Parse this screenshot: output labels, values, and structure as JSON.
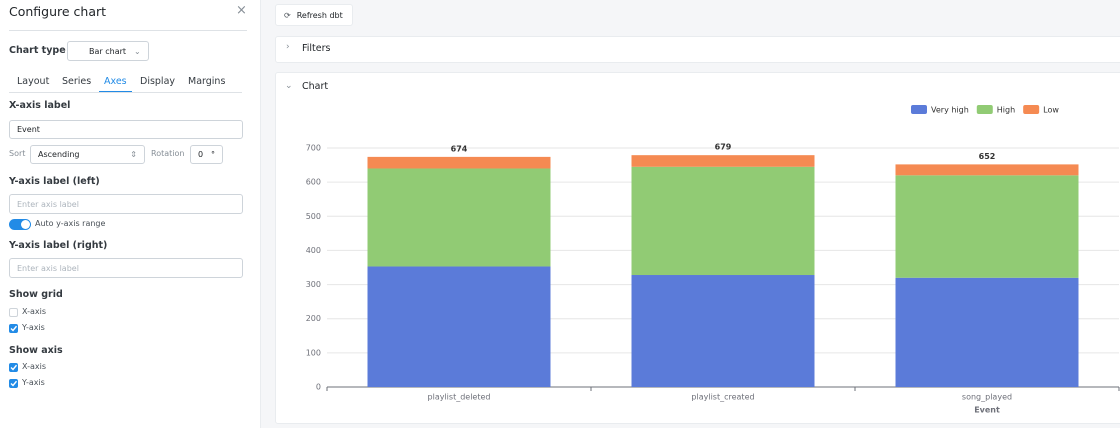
{
  "panel": {
    "title": "Configure chart",
    "chart_type_label": "Chart type",
    "chart_type": "Bar chart",
    "tabs": [
      "Layout",
      "Series",
      "Axes",
      "Display",
      "Margins"
    ],
    "active_tab": 2,
    "x_axis_label_heading": "X-axis label",
    "x_axis_label_value": "Event",
    "sort_label": "Sort",
    "sort_value": "Ascending",
    "rotation_label": "Rotation",
    "rotation_value": "0",
    "rotation_unit": "°",
    "y_left_heading": "Y-axis label (left)",
    "y_left_placeholder": "Enter axis label",
    "auto_range": "Auto y-axis range",
    "auto_range_on": true,
    "y_right_heading": "Y-axis label (right)",
    "y_right_placeholder": "Enter axis label",
    "show_grid": "Show grid",
    "grid_options": [
      {
        "label": "X-axis",
        "checked": false
      },
      {
        "label": "Y-axis",
        "checked": true
      }
    ],
    "show_axis": "Show axis",
    "axis_options": [
      {
        "label": "X-axis",
        "checked": true
      },
      {
        "label": "Y-axis",
        "checked": true
      }
    ]
  },
  "toolbar": {
    "refresh": "Refresh dbt"
  },
  "sections": {
    "filters": "Filters",
    "chart": "Chart"
  },
  "chart_data": {
    "type": "stacked_bar",
    "x_label": "Event",
    "categories": [
      "playlist_deleted",
      "playlist_created",
      "song_played"
    ],
    "series": [
      {
        "name": "Very high",
        "color": "#5b7bd9",
        "values": [
          353,
          328,
          320
        ]
      },
      {
        "name": "High",
        "color": "#91cb74",
        "values": [
          287,
          317,
          300
        ]
      },
      {
        "name": "Low",
        "color": "#f58a52",
        "values": [
          34,
          34,
          32
        ]
      }
    ],
    "totals": [
      674,
      679,
      652
    ],
    "ylim": [
      0,
      700
    ],
    "yticks": [
      0,
      100,
      200,
      300,
      400,
      500,
      600,
      700
    ],
    "grid": true,
    "legend": "top-right"
  }
}
